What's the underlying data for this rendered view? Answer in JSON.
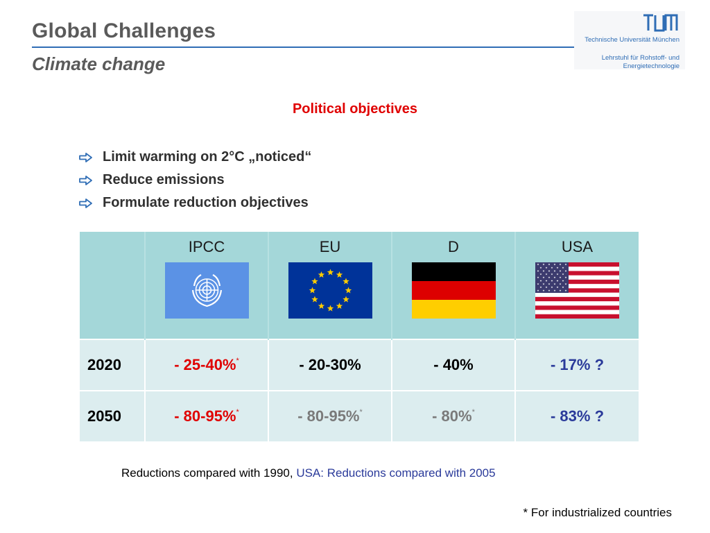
{
  "header": {
    "title": "Global Challenges",
    "subtitle": "Climate change",
    "logo_text": "TUM",
    "university": "Technische Universität München",
    "chair_line1": "Lehrstuhl für Rohstoff- und",
    "chair_line2": "Energietechnologie",
    "accent_color": "#2f6db5"
  },
  "section_heading": "Political objectives",
  "bullets": [
    {
      "icon": "right-arrow-icon",
      "text": "Limit warming on 2°C „noticed“"
    },
    {
      "icon": "right-arrow-icon",
      "text": "Reduce emissions"
    },
    {
      "icon": "right-arrow-icon",
      "text": "Formulate reduction objectives"
    }
  ],
  "table": {
    "columns": [
      {
        "label": "IPCC",
        "flag": "un-flag-icon"
      },
      {
        "label": "EU",
        "flag": "eu-flag-icon"
      },
      {
        "label": "D",
        "flag": "germany-flag-icon"
      },
      {
        "label": "USA",
        "flag": "usa-flag-icon"
      }
    ],
    "rows": [
      {
        "year": "2020",
        "values": [
          {
            "text": "- 25-40%",
            "star": "*",
            "color": "red"
          },
          {
            "text": "- 20-30%",
            "star": "",
            "color": "black"
          },
          {
            "text": "- 40%",
            "star": "",
            "color": "black"
          },
          {
            "text": "- 17% ?",
            "star": "",
            "color": "blue"
          }
        ]
      },
      {
        "year": "2050",
        "values": [
          {
            "text": "- 80-95%",
            "star": "*",
            "color": "red"
          },
          {
            "text": "- 80-95%",
            "star": "*",
            "color": "grey"
          },
          {
            "text": "- 80%",
            "star": "*",
            "color": "grey"
          },
          {
            "text": "- 83% ?",
            "star": "",
            "color": "blue"
          }
        ]
      }
    ]
  },
  "note": {
    "part1": "Reductions compared with 1990, ",
    "part2": "USA: Reductions compared with 2005"
  },
  "footnote": "* For industrialized countries"
}
